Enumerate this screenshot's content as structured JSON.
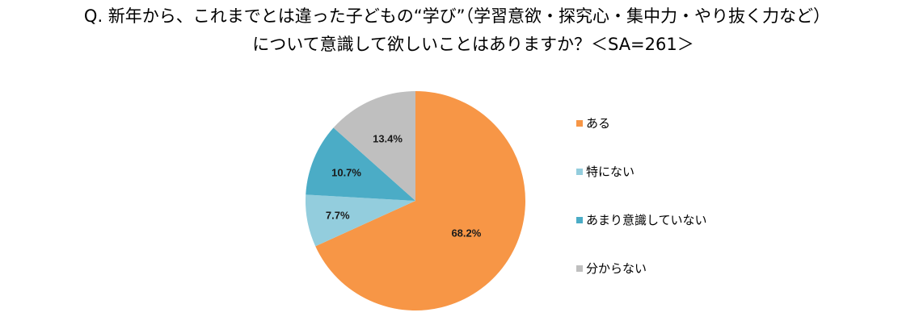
{
  "title": {
    "line1": "Q. 新年から、これまでとは違った子どもの“学び”（学習意欲・探究心・集中力・やり抜く力など）",
    "line2": "について意識して欲しいことはありますか？＜SA=261＞"
  },
  "legend": {
    "items": [
      {
        "label": "ある",
        "color": "#F79646"
      },
      {
        "label": "特にない",
        "color": "#93CDDD"
      },
      {
        "label": "あまり意識していない",
        "color": "#4BACC6"
      },
      {
        "label": "分からない",
        "color": "#BFBFBF"
      }
    ]
  },
  "data_labels": [
    "68.2%",
    "7.7%",
    "10.7%",
    "13.4%"
  ],
  "chart_data": {
    "type": "pie",
    "title": "Q. 新年から、これまでとは違った子どもの“学び”（学習意欲・探究心・集中力・やり抜く力など）について意識して欲しいことはありますか？＜SA=261＞",
    "categories": [
      "ある",
      "特にない",
      "あまり意識していない",
      "分からない"
    ],
    "values": [
      68.2,
      7.7,
      10.7,
      13.4
    ],
    "unit": "%",
    "colors": [
      "#F79646",
      "#93CDDD",
      "#4BACC6",
      "#BFBFBF"
    ],
    "start_angle": "12 o'clock",
    "direction": "clockwise",
    "legend_position": "right",
    "sample_size": 261
  }
}
